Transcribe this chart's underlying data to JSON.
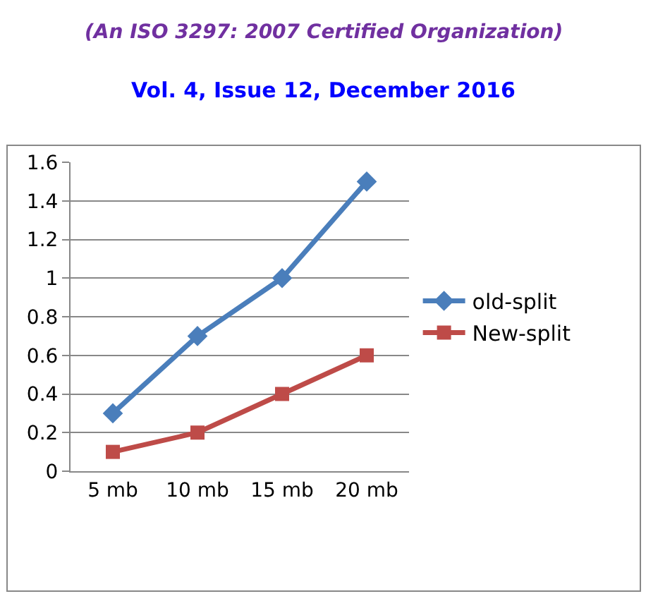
{
  "chart_data": {
    "type": "line",
    "subtitle": "(An ISO 3297: 2007 Certified Organization)",
    "title": "Vol. 4, Issue 12, December 2016",
    "categories": [
      "5 mb",
      "10 mb",
      "15 mb",
      "20 mb"
    ],
    "series": [
      {
        "name": "old-split",
        "color": "#4a7ebb",
        "marker": "diamond",
        "values": [
          0.3,
          0.7,
          1.0,
          1.5
        ]
      },
      {
        "name": "New-split",
        "color": "#be4b48",
        "marker": "square",
        "values": [
          0.1,
          0.2,
          0.4,
          0.6
        ]
      }
    ],
    "ylim": [
      0,
      1.6
    ],
    "yticks": [
      0,
      0.2,
      0.4,
      0.6,
      0.8,
      1,
      1.2,
      1.4,
      1.6
    ],
    "grid": "y",
    "legend": "right",
    "line_style": "solid"
  }
}
